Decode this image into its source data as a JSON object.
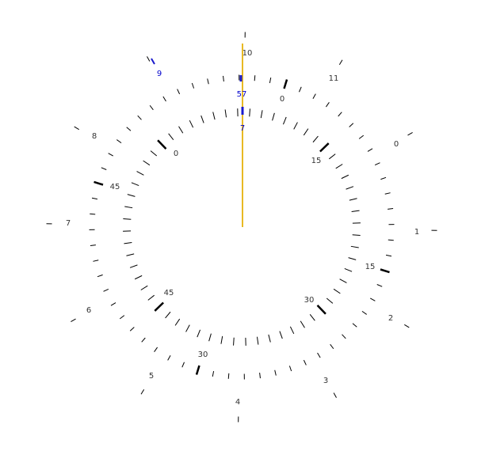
{
  "colors": {
    "background": "#ffffff",
    "tick": "#000000",
    "label": "#333333",
    "needle": "#e8b923",
    "marker": "#1a1acc",
    "marker_label": "#0000cc"
  },
  "outer_ring": {
    "labels": [
      "0",
      "1",
      "2",
      "3",
      "4",
      "5",
      "6",
      "7",
      "8",
      "9",
      "10",
      "11"
    ]
  },
  "middle_ring": {
    "labels": [
      "0",
      "15",
      "30",
      "45"
    ]
  },
  "inner_ring": {
    "labels": [
      "0",
      "15",
      "30",
      "45"
    ]
  },
  "readouts": {
    "hour": "9",
    "minute": "57",
    "second": "7"
  }
}
